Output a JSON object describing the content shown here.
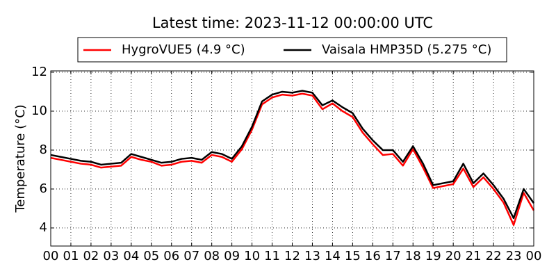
{
  "chart_data": {
    "type": "line",
    "title": "Latest time: 2023-11-12 00:00:00 UTC",
    "y_label": "Temperature (°C)",
    "x": [
      0,
      0.5,
      1,
      1.5,
      2,
      2.5,
      3,
      3.5,
      4,
      4.5,
      5,
      5.5,
      6,
      6.5,
      7,
      7.5,
      8,
      8.5,
      9,
      9.5,
      10,
      10.5,
      11,
      11.5,
      12,
      12.5,
      13,
      13.5,
      14,
      14.5,
      15,
      15.5,
      16,
      16.5,
      17,
      17.5,
      18,
      18.5,
      19,
      19.5,
      20,
      20.5,
      21,
      21.5,
      22,
      22.5,
      23,
      23.5,
      24
    ],
    "series": [
      {
        "name": "HygroVUE5 (4.9 °C)",
        "color": "#ff0000",
        "values": [
          7.6,
          7.5,
          7.4,
          7.3,
          7.25,
          7.1,
          7.15,
          7.2,
          7.65,
          7.5,
          7.4,
          7.2,
          7.25,
          7.4,
          7.45,
          7.35,
          7.75,
          7.65,
          7.4,
          8.05,
          9.05,
          10.35,
          10.7,
          10.85,
          10.8,
          10.9,
          10.8,
          10.1,
          10.4,
          10.0,
          9.7,
          8.9,
          8.3,
          7.75,
          7.8,
          7.2,
          8.05,
          7.1,
          6.05,
          6.15,
          6.25,
          7.05,
          6.1,
          6.6,
          6.0,
          5.3,
          4.15,
          5.8,
          4.9
        ]
      },
      {
        "name": "Vaisala HMP35D (5.275 °C)",
        "color": "#000000",
        "values": [
          7.75,
          7.65,
          7.55,
          7.45,
          7.4,
          7.25,
          7.3,
          7.35,
          7.8,
          7.65,
          7.5,
          7.35,
          7.4,
          7.55,
          7.6,
          7.5,
          7.9,
          7.8,
          7.55,
          8.2,
          9.2,
          10.5,
          10.85,
          11.0,
          10.95,
          11.05,
          10.95,
          10.3,
          10.55,
          10.2,
          9.9,
          9.1,
          8.5,
          8.0,
          8.0,
          7.4,
          8.2,
          7.3,
          6.2,
          6.3,
          6.4,
          7.3,
          6.3,
          6.8,
          6.2,
          5.5,
          4.5,
          6.0,
          5.275
        ]
      }
    ],
    "xlim": [
      0,
      24
    ],
    "xticks": [
      {
        "value": 0,
        "label": "00"
      },
      {
        "value": 1,
        "label": "01"
      },
      {
        "value": 2,
        "label": "02"
      },
      {
        "value": 3,
        "label": "03"
      },
      {
        "value": 4,
        "label": "04"
      },
      {
        "value": 5,
        "label": "05"
      },
      {
        "value": 6,
        "label": "06"
      },
      {
        "value": 7,
        "label": "07"
      },
      {
        "value": 8,
        "label": "08"
      },
      {
        "value": 9,
        "label": "09"
      },
      {
        "value": 10,
        "label": "10"
      },
      {
        "value": 11,
        "label": "11"
      },
      {
        "value": 12,
        "label": "12"
      },
      {
        "value": 13,
        "label": "13"
      },
      {
        "value": 14,
        "label": "14"
      },
      {
        "value": 15,
        "label": "15"
      },
      {
        "value": 16,
        "label": "16"
      },
      {
        "value": 17,
        "label": "17"
      },
      {
        "value": 18,
        "label": "18"
      },
      {
        "value": 19,
        "label": "19"
      },
      {
        "value": 20,
        "label": "20"
      },
      {
        "value": 21,
        "label": "21"
      },
      {
        "value": 22,
        "label": "22"
      },
      {
        "value": 23,
        "label": "23"
      },
      {
        "value": 24,
        "label": "00"
      }
    ],
    "ylim": [
      3.07,
      12.07
    ],
    "yticks": [
      4,
      6,
      8,
      10,
      12
    ],
    "grid": true
  }
}
